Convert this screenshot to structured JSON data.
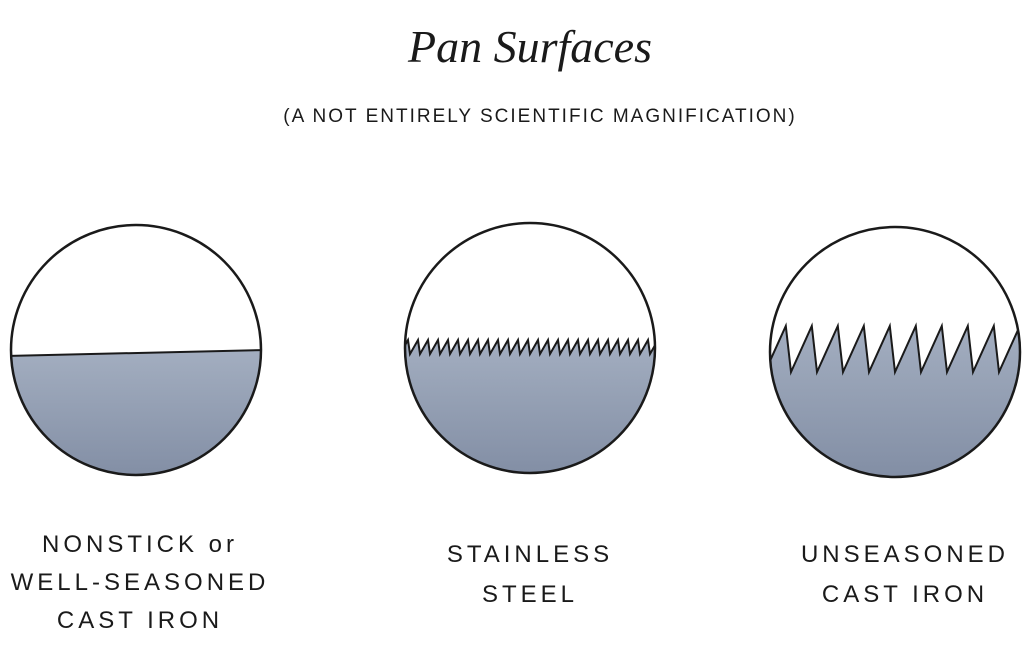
{
  "header": {
    "title": "Pan Surfaces",
    "subtitle": "(A NOT ENTIRELY SCIENTIFIC MAGNIFICATION)"
  },
  "panels": [
    {
      "lines": [
        "NONSTICK or",
        "WELL-SEASONED",
        "CAST IRON"
      ]
    },
    {
      "lines": [
        "STAINLESS",
        "STEEL"
      ]
    },
    {
      "lines": [
        "UNSEASONED",
        "CAST IRON"
      ]
    }
  ]
}
